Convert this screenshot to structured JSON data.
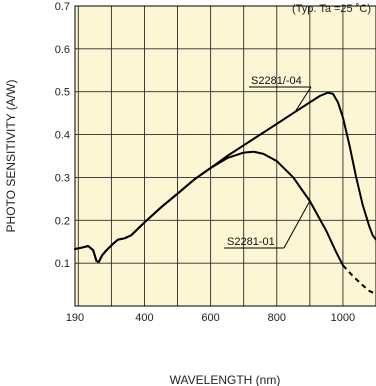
{
  "chart_data": {
    "type": "line",
    "note": "(Typ. Ta =25 ˚C)",
    "xlabel": "WAVELENGTH (nm)",
    "ylabel": "PHOTO SENSITIVITY (A/W)",
    "x_ticks": [
      "190",
      "400",
      "600",
      "800",
      "1000"
    ],
    "y_ticks": [
      "0.1",
      "0.2",
      "0.3",
      "0.4",
      "0.5",
      "0.6",
      "0.7"
    ],
    "xlim": [
      190,
      1100
    ],
    "ylim": [
      0,
      0.7
    ],
    "grid": true,
    "colors": {
      "plot_background": "#fdf6d4",
      "grid": "#2a2a2a",
      "axis": "#000000",
      "line": "#000000"
    },
    "series": [
      {
        "name": "S2281/-04",
        "points": [
          [
            190,
            0.133
          ],
          [
            210,
            0.136
          ],
          [
            230,
            0.14
          ],
          [
            245,
            0.13
          ],
          [
            255,
            0.105
          ],
          [
            262,
            0.103
          ],
          [
            272,
            0.118
          ],
          [
            285,
            0.13
          ],
          [
            305,
            0.145
          ],
          [
            320,
            0.155
          ],
          [
            340,
            0.158
          ],
          [
            360,
            0.165
          ],
          [
            380,
            0.18
          ],
          [
            400,
            0.195
          ],
          [
            450,
            0.23
          ],
          [
            500,
            0.262
          ],
          [
            550,
            0.295
          ],
          [
            600,
            0.322
          ],
          [
            650,
            0.35
          ],
          [
            700,
            0.375
          ],
          [
            750,
            0.4
          ],
          [
            800,
            0.425
          ],
          [
            850,
            0.45
          ],
          [
            900,
            0.475
          ],
          [
            930,
            0.49
          ],
          [
            955,
            0.498
          ],
          [
            970,
            0.495
          ],
          [
            985,
            0.475
          ],
          [
            1000,
            0.44
          ],
          [
            1020,
            0.375
          ],
          [
            1040,
            0.3
          ],
          [
            1060,
            0.235
          ],
          [
            1080,
            0.185
          ],
          [
            1090,
            0.165
          ],
          [
            1100,
            0.155
          ]
        ]
      },
      {
        "name": "S2281-01",
        "points": [
          [
            190,
            0.133
          ],
          [
            210,
            0.136
          ],
          [
            230,
            0.14
          ],
          [
            245,
            0.13
          ],
          [
            255,
            0.105
          ],
          [
            262,
            0.103
          ],
          [
            272,
            0.118
          ],
          [
            285,
            0.13
          ],
          [
            305,
            0.145
          ],
          [
            320,
            0.155
          ],
          [
            340,
            0.158
          ],
          [
            360,
            0.165
          ],
          [
            380,
            0.18
          ],
          [
            400,
            0.195
          ],
          [
            450,
            0.23
          ],
          [
            500,
            0.262
          ],
          [
            550,
            0.295
          ],
          [
            600,
            0.322
          ],
          [
            650,
            0.345
          ],
          [
            700,
            0.358
          ],
          [
            730,
            0.36
          ],
          [
            760,
            0.355
          ],
          [
            800,
            0.338
          ],
          [
            850,
            0.3
          ],
          [
            900,
            0.245
          ],
          [
            950,
            0.175
          ],
          [
            980,
            0.125
          ],
          [
            1000,
            0.095
          ]
        ],
        "dashed_points": [
          [
            1000,
            0.095
          ],
          [
            1030,
            0.07
          ],
          [
            1060,
            0.048
          ],
          [
            1080,
            0.035
          ],
          [
            1100,
            0.028
          ]
        ]
      }
    ],
    "annotations": [
      {
        "text": "S2281/-04",
        "series": "S2281/-04"
      },
      {
        "text": "S2281-01",
        "series": "S2281-01"
      }
    ]
  }
}
